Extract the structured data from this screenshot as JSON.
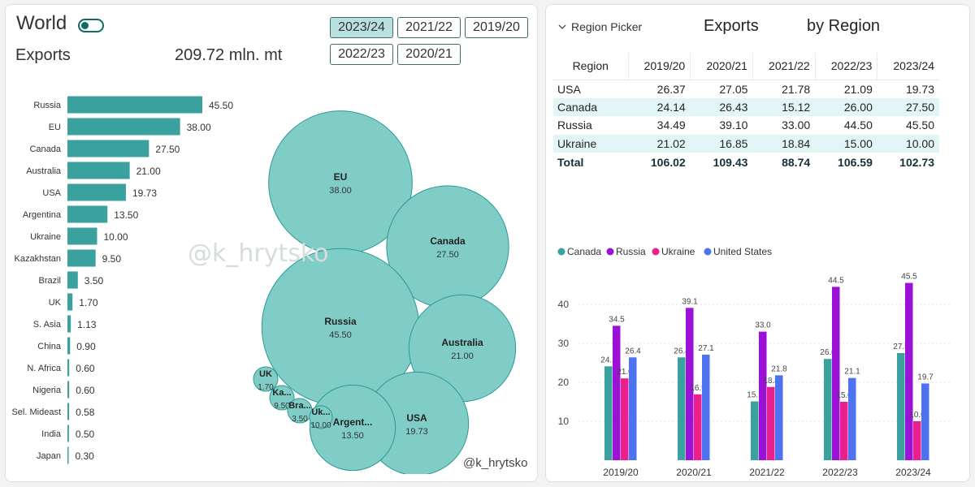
{
  "left_panel": {
    "title": "World",
    "exports_label": "Exports",
    "exports_value": "209.72  mln. mt",
    "year_buttons": [
      "2023/24",
      "2021/22",
      "2019/20",
      "2022/23",
      "2020/21"
    ],
    "active_year": "2023/24",
    "watermark": "@k_hrytsko",
    "credit": "@k_hrytsko",
    "accent_color": "#3aa19e",
    "bubble_color": "#80cdc8"
  },
  "right_panel": {
    "region_picker_label": "Region Picker",
    "table_title_left": "Exports",
    "table_title_right": "by Region"
  },
  "chart_data": [
    {
      "type": "bar",
      "orientation": "horizontal",
      "categories": [
        "Russia",
        "EU",
        "Canada",
        "Australia",
        "USA",
        "Argentina",
        "Ukraine",
        "Kazakhstan",
        "Brazil",
        "UK",
        "S. Asia",
        "China",
        "N. Africa",
        "Nigeria",
        "Sel. Mideast",
        "India",
        "Japan"
      ],
      "values": [
        45.5,
        38.0,
        27.5,
        21.0,
        19.73,
        13.5,
        10.0,
        9.5,
        3.5,
        1.7,
        1.13,
        0.9,
        0.6,
        0.6,
        0.58,
        0.5,
        0.3
      ],
      "value_labels": [
        "45.50",
        "38.00",
        "27.50",
        "21.00",
        "19.73",
        "13.50",
        "10.00",
        "9.50",
        "3.50",
        "1.70",
        "1.13",
        "0.90",
        "0.60",
        "0.60",
        "0.58",
        "0.50",
        "0.30"
      ],
      "color": "#3aa19e"
    },
    {
      "type": "bubble",
      "bubbles": [
        {
          "name": "EU",
          "value": 38.0,
          "label": "38.00"
        },
        {
          "name": "Canada",
          "value": 27.5,
          "label": "27.50"
        },
        {
          "name": "Russia",
          "value": 45.5,
          "label": "45.50"
        },
        {
          "name": "Australia",
          "value": 21.0,
          "label": "21.00"
        },
        {
          "name": "USA",
          "value": 19.73,
          "label": "19.73"
        },
        {
          "name": "Argent...",
          "value": 13.5,
          "label": "13.50"
        },
        {
          "name": "UK",
          "value": 1.7,
          "label": "1.70"
        },
        {
          "name": "Ka...",
          "value": 9.5,
          "label": "9.50"
        },
        {
          "name": "Bra...",
          "value": 3.5,
          "label": "3.50"
        },
        {
          "name": "Uk...",
          "value": 10.0,
          "label": "10.00"
        }
      ],
      "color": "#80cdc8",
      "stroke": "#2a9a93"
    },
    {
      "type": "table",
      "columns": [
        "Region",
        "2019/20",
        "2020/21",
        "2021/22",
        "2022/23",
        "2023/24"
      ],
      "rows": [
        [
          "USA",
          "26.37",
          "27.05",
          "21.78",
          "21.09",
          "19.73"
        ],
        [
          "Canada",
          "24.14",
          "26.43",
          "15.12",
          "26.00",
          "27.50"
        ],
        [
          "Russia",
          "34.49",
          "39.10",
          "33.00",
          "44.50",
          "45.50"
        ],
        [
          "Ukraine",
          "21.02",
          "16.85",
          "18.84",
          "15.00",
          "10.00"
        ]
      ],
      "total": [
        "Total",
        "106.02",
        "109.43",
        "88.74",
        "106.59",
        "102.73"
      ]
    },
    {
      "type": "bar",
      "categories": [
        "2019/20",
        "2020/21",
        "2021/22",
        "2022/23",
        "2023/24"
      ],
      "series": [
        {
          "name": "Canada",
          "color": "#3aa19e",
          "values": [
            24.1,
            26.4,
            15.1,
            26.0,
            27.5
          ],
          "labels": [
            "24.1",
            "26.4",
            "15.1",
            "26.0",
            "27.5"
          ]
        },
        {
          "name": "Russia",
          "color": "#9b12d6",
          "values": [
            34.5,
            39.1,
            33.0,
            44.5,
            45.5
          ],
          "labels": [
            "34.5",
            "39.1",
            "33.0",
            "44.5",
            "45.5"
          ]
        },
        {
          "name": "Ukraine",
          "color": "#ea1f8e",
          "values": [
            21.0,
            16.9,
            18.8,
            15.0,
            10.0
          ],
          "labels": [
            "21.0",
            "16.9",
            "18.8",
            "15.0",
            "10.0"
          ]
        },
        {
          "name": "United States",
          "color": "#4e73f0",
          "values": [
            26.4,
            27.1,
            21.8,
            21.1,
            19.7
          ],
          "labels": [
            "26.4",
            "27.1",
            "21.8",
            "21.1",
            "19.7"
          ]
        }
      ],
      "y_ticks": [
        "10",
        "20",
        "30",
        "40"
      ],
      "ylim": [
        0,
        48
      ],
      "grid": true,
      "legend": "top-left"
    }
  ]
}
